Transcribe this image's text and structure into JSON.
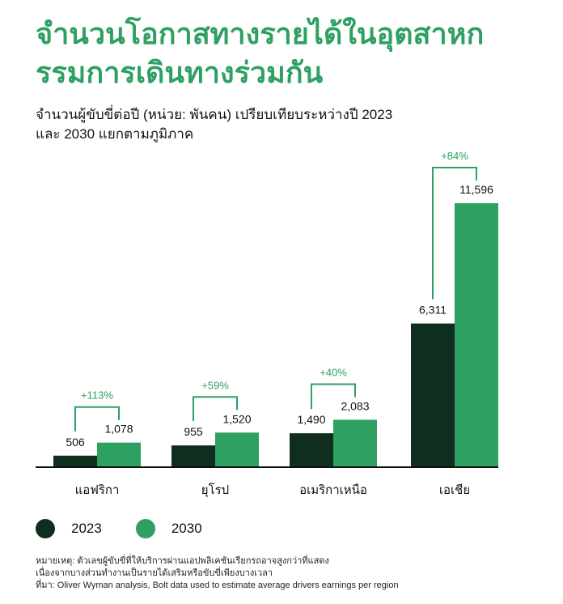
{
  "title_lines": [
    "จำนวนโอกาสทางรายได้ในอุตสาหก",
    "รรมการเดินทางร่วมกัน"
  ],
  "subtitle_lines": [
    "จำนวนผู้ขับขี่ต่อปี (หน่วย: พันคน) เปรียบเทียบระหว่างปี 2023",
    "และ 2030 แยกตามภูมิภาค"
  ],
  "colors": {
    "s2023": "#0f2e1e",
    "s2030": "#2ea062",
    "title": "#2ea062",
    "axis": "#111111"
  },
  "chart_data": {
    "type": "bar",
    "categories": [
      "แอฟริกา",
      "ยุโรป",
      "อเมริกาเหนือ",
      "เอเชีย"
    ],
    "series": [
      {
        "name": "2023",
        "values": [
          506,
          955,
          1490,
          6311
        ],
        "labels": [
          "506",
          "955",
          "1,490",
          "6,311"
        ]
      },
      {
        "name": "2030",
        "values": [
          1078,
          1520,
          2083,
          11596
        ],
        "labels": [
          "1,078",
          "1,520",
          "2,083",
          "11,596"
        ]
      }
    ],
    "growth_labels": [
      "+113%",
      "+59%",
      "+40%",
      "+84%"
    ],
    "ylim": [
      0,
      11596
    ],
    "grid": false,
    "legend": "bottom-left"
  },
  "footnote_lines": [
    "หมายเหตุ: ตัวเลขผู้ขับขี่ที่ให้บริการผ่านแอปพลิเคชันเรียกรถอาจสูงกว่าที่แสดง",
    "เนื่องจากบางส่วนทำงานเป็นรายได้เสริมหรือขับขี่เพียงบางเวลา",
    "ที่มา: Oliver Wyman analysis, Bolt data used to estimate average drivers earnings per region"
  ]
}
